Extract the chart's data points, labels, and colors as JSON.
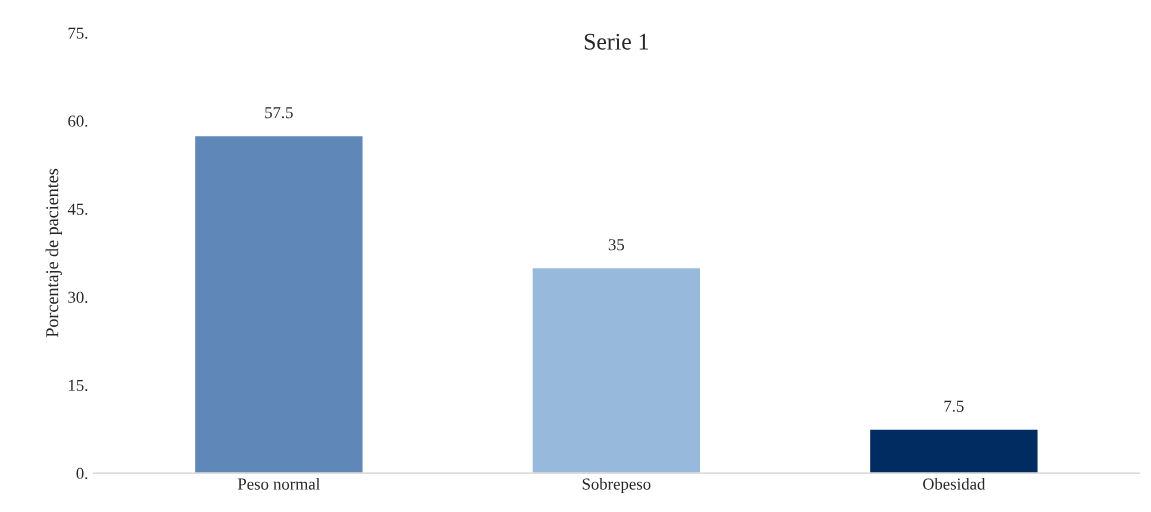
{
  "chart_data": {
    "type": "bar",
    "title": "Serie 1",
    "ylabel": "Porcentaje de pacientes",
    "categories": [
      "Peso normal",
      "Sobrepeso",
      "Obesidad"
    ],
    "values": [
      57.5,
      35,
      7.5
    ],
    "colors": [
      "#5f87b8",
      "#97b9db",
      "#002c62"
    ],
    "ylim": [
      0,
      75
    ],
    "yticks": [
      {
        "value": 0,
        "label": "0."
      },
      {
        "value": 15,
        "label": "15."
      },
      {
        "value": 30,
        "label": "30."
      },
      {
        "value": 45,
        "label": "45."
      },
      {
        "value": 60,
        "label": "60."
      },
      {
        "value": 75,
        "label": "75."
      }
    ],
    "data_labels": true,
    "grid": false,
    "legend": false
  }
}
